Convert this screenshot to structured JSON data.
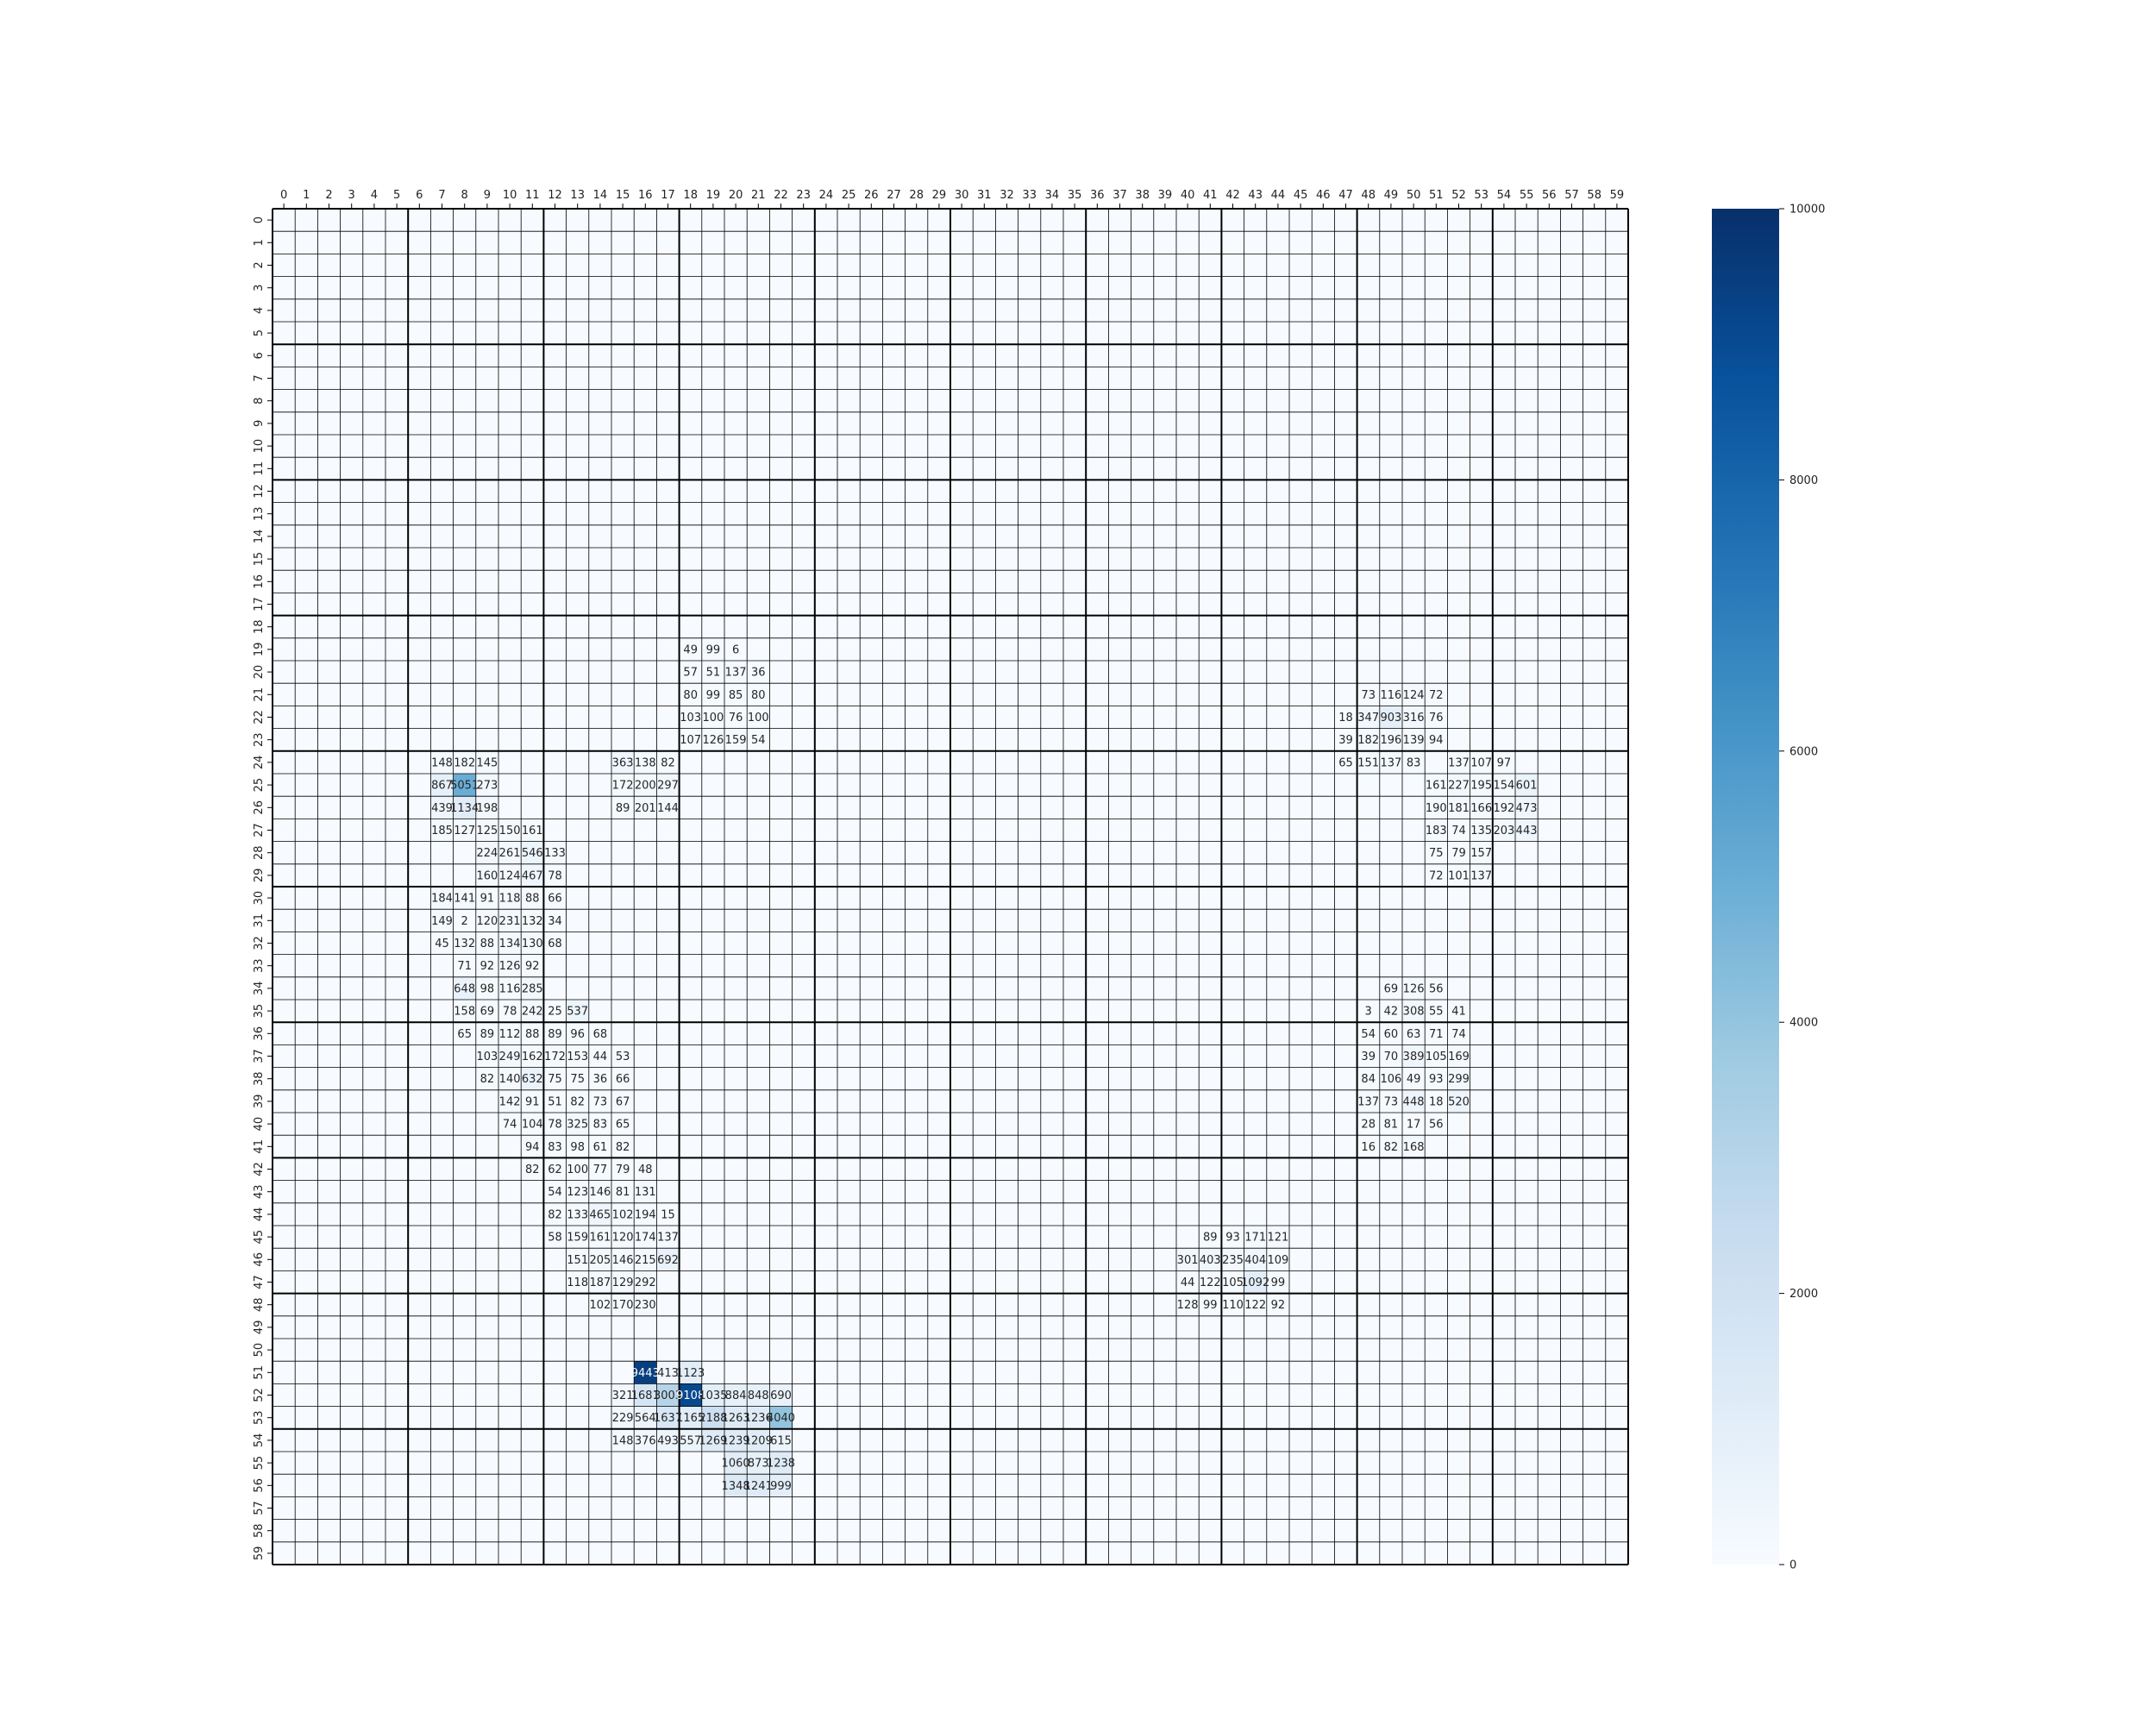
{
  "chart_data": {
    "type": "heatmap",
    "rows": 60,
    "cols": 60,
    "x_tick_labels": [
      "0",
      "1",
      "2",
      "3",
      "4",
      "5",
      "6",
      "7",
      "8",
      "9",
      "10",
      "11",
      "12",
      "13",
      "14",
      "15",
      "16",
      "17",
      "18",
      "19",
      "20",
      "21",
      "22",
      "23",
      "24",
      "25",
      "26",
      "27",
      "28",
      "29",
      "30",
      "31",
      "32",
      "33",
      "34",
      "35",
      "36",
      "37",
      "38",
      "39",
      "40",
      "41",
      "42",
      "43",
      "44",
      "45",
      "46",
      "47",
      "48",
      "49",
      "50",
      "51",
      "52",
      "53",
      "54",
      "55",
      "56",
      "57",
      "58",
      "59"
    ],
    "y_tick_labels": [
      "0",
      "1",
      "2",
      "3",
      "4",
      "5",
      "6",
      "7",
      "8",
      "9",
      "10",
      "11",
      "12",
      "13",
      "14",
      "15",
      "16",
      "17",
      "18",
      "19",
      "20",
      "21",
      "22",
      "23",
      "24",
      "25",
      "26",
      "27",
      "28",
      "29",
      "30",
      "31",
      "32",
      "33",
      "34",
      "35",
      "36",
      "37",
      "38",
      "39",
      "40",
      "41",
      "42",
      "43",
      "44",
      "45",
      "46",
      "47",
      "48",
      "49",
      "50",
      "51",
      "52",
      "53",
      "54",
      "55",
      "56",
      "57",
      "58",
      "59"
    ],
    "colorbar": {
      "min": 0,
      "max": 10000,
      "colormap": "Blues",
      "ticks": [
        "0",
        "2000",
        "4000",
        "6000",
        "8000",
        "10000"
      ]
    },
    "major_grid_every": 6,
    "x_axis_position": "top",
    "cells": [
      [
        19,
        18,
        49
      ],
      [
        19,
        19,
        99
      ],
      [
        19,
        20,
        6
      ],
      [
        20,
        18,
        57
      ],
      [
        20,
        19,
        51
      ],
      [
        20,
        20,
        137
      ],
      [
        20,
        21,
        36
      ],
      [
        21,
        18,
        80
      ],
      [
        21,
        19,
        99
      ],
      [
        21,
        20,
        85
      ],
      [
        21,
        21,
        80
      ],
      [
        22,
        18,
        103
      ],
      [
        22,
        19,
        100
      ],
      [
        22,
        20,
        76
      ],
      [
        22,
        21,
        100
      ],
      [
        23,
        18,
        107
      ],
      [
        23,
        19,
        126
      ],
      [
        23,
        20,
        159
      ],
      [
        23,
        21,
        54
      ],
      [
        21,
        48,
        73
      ],
      [
        21,
        49,
        116
      ],
      [
        21,
        50,
        124
      ],
      [
        21,
        51,
        72
      ],
      [
        22,
        47,
        18
      ],
      [
        22,
        48,
        347
      ],
      [
        22,
        49,
        903
      ],
      [
        22,
        50,
        316
      ],
      [
        22,
        51,
        76
      ],
      [
        23,
        47,
        39
      ],
      [
        23,
        48,
        182
      ],
      [
        23,
        49,
        196
      ],
      [
        23,
        50,
        139
      ],
      [
        23,
        51,
        94
      ],
      [
        24,
        47,
        65
      ],
      [
        24,
        48,
        151
      ],
      [
        24,
        49,
        137
      ],
      [
        24,
        50,
        83
      ],
      [
        24,
        52,
        137
      ],
      [
        24,
        53,
        107
      ],
      [
        24,
        54,
        97
      ],
      [
        25,
        51,
        161
      ],
      [
        25,
        52,
        227
      ],
      [
        25,
        53,
        195
      ],
      [
        25,
        54,
        154
      ],
      [
        25,
        55,
        601
      ],
      [
        26,
        51,
        190
      ],
      [
        26,
        52,
        181
      ],
      [
        26,
        53,
        166
      ],
      [
        26,
        54,
        192
      ],
      [
        26,
        55,
        473
      ],
      [
        27,
        51,
        183
      ],
      [
        27,
        52,
        74
      ],
      [
        27,
        53,
        135
      ],
      [
        27,
        54,
        203
      ],
      [
        27,
        55,
        443
      ],
      [
        28,
        51,
        75
      ],
      [
        28,
        52,
        79
      ],
      [
        28,
        53,
        157
      ],
      [
        29,
        51,
        72
      ],
      [
        29,
        52,
        101
      ],
      [
        29,
        53,
        137
      ],
      [
        24,
        7,
        148
      ],
      [
        24,
        8,
        182
      ],
      [
        24,
        9,
        145
      ],
      [
        24,
        15,
        363
      ],
      [
        24,
        16,
        138
      ],
      [
        24,
        17,
        82
      ],
      [
        25,
        7,
        867
      ],
      [
        25,
        8,
        5051
      ],
      [
        25,
        9,
        273
      ],
      [
        25,
        15,
        172
      ],
      [
        25,
        16,
        200
      ],
      [
        25,
        17,
        297
      ],
      [
        26,
        7,
        439
      ],
      [
        26,
        8,
        1134
      ],
      [
        26,
        9,
        198
      ],
      [
        26,
        15,
        89
      ],
      [
        26,
        16,
        201
      ],
      [
        26,
        17,
        144
      ],
      [
        27,
        7,
        185
      ],
      [
        27,
        8,
        127
      ],
      [
        27,
        9,
        125
      ],
      [
        27,
        10,
        150
      ],
      [
        27,
        11,
        161
      ],
      [
        28,
        9,
        224
      ],
      [
        28,
        10,
        261
      ],
      [
        28,
        11,
        546
      ],
      [
        28,
        12,
        133
      ],
      [
        29,
        9,
        160
      ],
      [
        29,
        10,
        124
      ],
      [
        29,
        11,
        467
      ],
      [
        29,
        12,
        78
      ],
      [
        30,
        7,
        184
      ],
      [
        30,
        8,
        141
      ],
      [
        30,
        9,
        91
      ],
      [
        30,
        10,
        118
      ],
      [
        30,
        11,
        88
      ],
      [
        30,
        12,
        66
      ],
      [
        31,
        7,
        149
      ],
      [
        31,
        8,
        2
      ],
      [
        31,
        9,
        120
      ],
      [
        31,
        10,
        231
      ],
      [
        31,
        11,
        132
      ],
      [
        31,
        12,
        34
      ],
      [
        32,
        7,
        45
      ],
      [
        32,
        8,
        132
      ],
      [
        32,
        9,
        88
      ],
      [
        32,
        10,
        134
      ],
      [
        32,
        11,
        130
      ],
      [
        32,
        12,
        68
      ],
      [
        33,
        8,
        71
      ],
      [
        33,
        9,
        92
      ],
      [
        33,
        10,
        126
      ],
      [
        33,
        11,
        92
      ],
      [
        34,
        8,
        648
      ],
      [
        34,
        9,
        98
      ],
      [
        34,
        10,
        116
      ],
      [
        34,
        11,
        285
      ],
      [
        35,
        8,
        158
      ],
      [
        35,
        9,
        69
      ],
      [
        35,
        10,
        78
      ],
      [
        35,
        11,
        242
      ],
      [
        35,
        12,
        25
      ],
      [
        35,
        13,
        537
      ],
      [
        36,
        8,
        65
      ],
      [
        36,
        9,
        89
      ],
      [
        36,
        10,
        112
      ],
      [
        36,
        11,
        88
      ],
      [
        36,
        12,
        89
      ],
      [
        36,
        13,
        96
      ],
      [
        36,
        14,
        68
      ],
      [
        37,
        9,
        103
      ],
      [
        37,
        10,
        249
      ],
      [
        37,
        11,
        162
      ],
      [
        37,
        12,
        172
      ],
      [
        37,
        13,
        153
      ],
      [
        37,
        14,
        44
      ],
      [
        37,
        15,
        53
      ],
      [
        38,
        9,
        82
      ],
      [
        38,
        10,
        140
      ],
      [
        38,
        11,
        632
      ],
      [
        38,
        12,
        75
      ],
      [
        38,
        13,
        75
      ],
      [
        38,
        14,
        36
      ],
      [
        38,
        15,
        66
      ],
      [
        39,
        10,
        142
      ],
      [
        39,
        11,
        91
      ],
      [
        39,
        12,
        51
      ],
      [
        39,
        13,
        82
      ],
      [
        39,
        14,
        73
      ],
      [
        39,
        15,
        67
      ],
      [
        40,
        10,
        74
      ],
      [
        40,
        11,
        104
      ],
      [
        40,
        12,
        78
      ],
      [
        40,
        13,
        325
      ],
      [
        40,
        14,
        83
      ],
      [
        40,
        15,
        65
      ],
      [
        41,
        11,
        94
      ],
      [
        41,
        12,
        83
      ],
      [
        41,
        13,
        98
      ],
      [
        41,
        14,
        61
      ],
      [
        41,
        15,
        82
      ],
      [
        42,
        11,
        82
      ],
      [
        42,
        12,
        62
      ],
      [
        42,
        13,
        100
      ],
      [
        42,
        14,
        77
      ],
      [
        42,
        15,
        79
      ],
      [
        42,
        16,
        48
      ],
      [
        43,
        12,
        54
      ],
      [
        43,
        13,
        123
      ],
      [
        43,
        14,
        146
      ],
      [
        43,
        15,
        81
      ],
      [
        43,
        16,
        131
      ],
      [
        44,
        12,
        82
      ],
      [
        44,
        13,
        133
      ],
      [
        44,
        14,
        465
      ],
      [
        44,
        15,
        102
      ],
      [
        44,
        16,
        194
      ],
      [
        44,
        17,
        15
      ],
      [
        45,
        12,
        58
      ],
      [
        45,
        13,
        159
      ],
      [
        45,
        14,
        161
      ],
      [
        45,
        15,
        120
      ],
      [
        45,
        16,
        174
      ],
      [
        45,
        17,
        137
      ],
      [
        46,
        13,
        151
      ],
      [
        46,
        14,
        205
      ],
      [
        46,
        15,
        146
      ],
      [
        46,
        16,
        215
      ],
      [
        46,
        17,
        692
      ],
      [
        47,
        13,
        118
      ],
      [
        47,
        14,
        187
      ],
      [
        47,
        15,
        129
      ],
      [
        47,
        16,
        292
      ],
      [
        48,
        14,
        102
      ],
      [
        48,
        15,
        170
      ],
      [
        48,
        16,
        230
      ],
      [
        34,
        49,
        69
      ],
      [
        34,
        50,
        126
      ],
      [
        34,
        51,
        56
      ],
      [
        35,
        48,
        3
      ],
      [
        35,
        49,
        42
      ],
      [
        35,
        50,
        308
      ],
      [
        35,
        51,
        55
      ],
      [
        35,
        52,
        41
      ],
      [
        36,
        48,
        54
      ],
      [
        36,
        49,
        60
      ],
      [
        36,
        50,
        63
      ],
      [
        36,
        51,
        71
      ],
      [
        36,
        52,
        74
      ],
      [
        37,
        48,
        39
      ],
      [
        37,
        49,
        70
      ],
      [
        37,
        50,
        389
      ],
      [
        37,
        51,
        105
      ],
      [
        37,
        52,
        169
      ],
      [
        38,
        48,
        84
      ],
      [
        38,
        49,
        106
      ],
      [
        38,
        50,
        49
      ],
      [
        38,
        51,
        93
      ],
      [
        38,
        52,
        299
      ],
      [
        39,
        48,
        137
      ],
      [
        39,
        49,
        73
      ],
      [
        39,
        50,
        448
      ],
      [
        39,
        51,
        18
      ],
      [
        39,
        52,
        520
      ],
      [
        40,
        48,
        28
      ],
      [
        40,
        49,
        81
      ],
      [
        40,
        50,
        17
      ],
      [
        40,
        51,
        56
      ],
      [
        41,
        48,
        16
      ],
      [
        41,
        49,
        82
      ],
      [
        41,
        50,
        168
      ],
      [
        45,
        41,
        89
      ],
      [
        45,
        42,
        93
      ],
      [
        45,
        43,
        171
      ],
      [
        45,
        44,
        121
      ],
      [
        46,
        40,
        301
      ],
      [
        46,
        41,
        403
      ],
      [
        46,
        42,
        235
      ],
      [
        46,
        43,
        404
      ],
      [
        46,
        44,
        109
      ],
      [
        47,
        40,
        44
      ],
      [
        47,
        41,
        122
      ],
      [
        47,
        42,
        105
      ],
      [
        47,
        43,
        1092
      ],
      [
        47,
        44,
        99
      ],
      [
        48,
        40,
        128
      ],
      [
        48,
        41,
        99
      ],
      [
        48,
        42,
        110
      ],
      [
        48,
        43,
        122
      ],
      [
        48,
        44,
        92
      ],
      [
        51,
        16,
        9443
      ],
      [
        51,
        17,
        413
      ],
      [
        51,
        18,
        1123
      ],
      [
        52,
        15,
        321
      ],
      [
        52,
        16,
        1681
      ],
      [
        52,
        17,
        3003
      ],
      [
        52,
        18,
        9108
      ],
      [
        52,
        19,
        1035
      ],
      [
        52,
        20,
        884
      ],
      [
        52,
        21,
        848
      ],
      [
        52,
        22,
        690
      ],
      [
        53,
        15,
        229
      ],
      [
        53,
        16,
        564
      ],
      [
        53,
        17,
        1637
      ],
      [
        53,
        18,
        1165
      ],
      [
        53,
        19,
        2188
      ],
      [
        53,
        20,
        1263
      ],
      [
        53,
        21,
        1236
      ],
      [
        53,
        22,
        4040
      ],
      [
        54,
        15,
        148
      ],
      [
        54,
        16,
        376
      ],
      [
        54,
        17,
        493
      ],
      [
        54,
        18,
        557
      ],
      [
        54,
        19,
        1269
      ],
      [
        54,
        20,
        1239
      ],
      [
        54,
        21,
        1209
      ],
      [
        54,
        22,
        615
      ],
      [
        55,
        20,
        1060
      ],
      [
        55,
        21,
        873
      ],
      [
        55,
        22,
        1238
      ],
      [
        56,
        20,
        1348
      ],
      [
        56,
        21,
        1241
      ],
      [
        56,
        22,
        999
      ]
    ]
  }
}
